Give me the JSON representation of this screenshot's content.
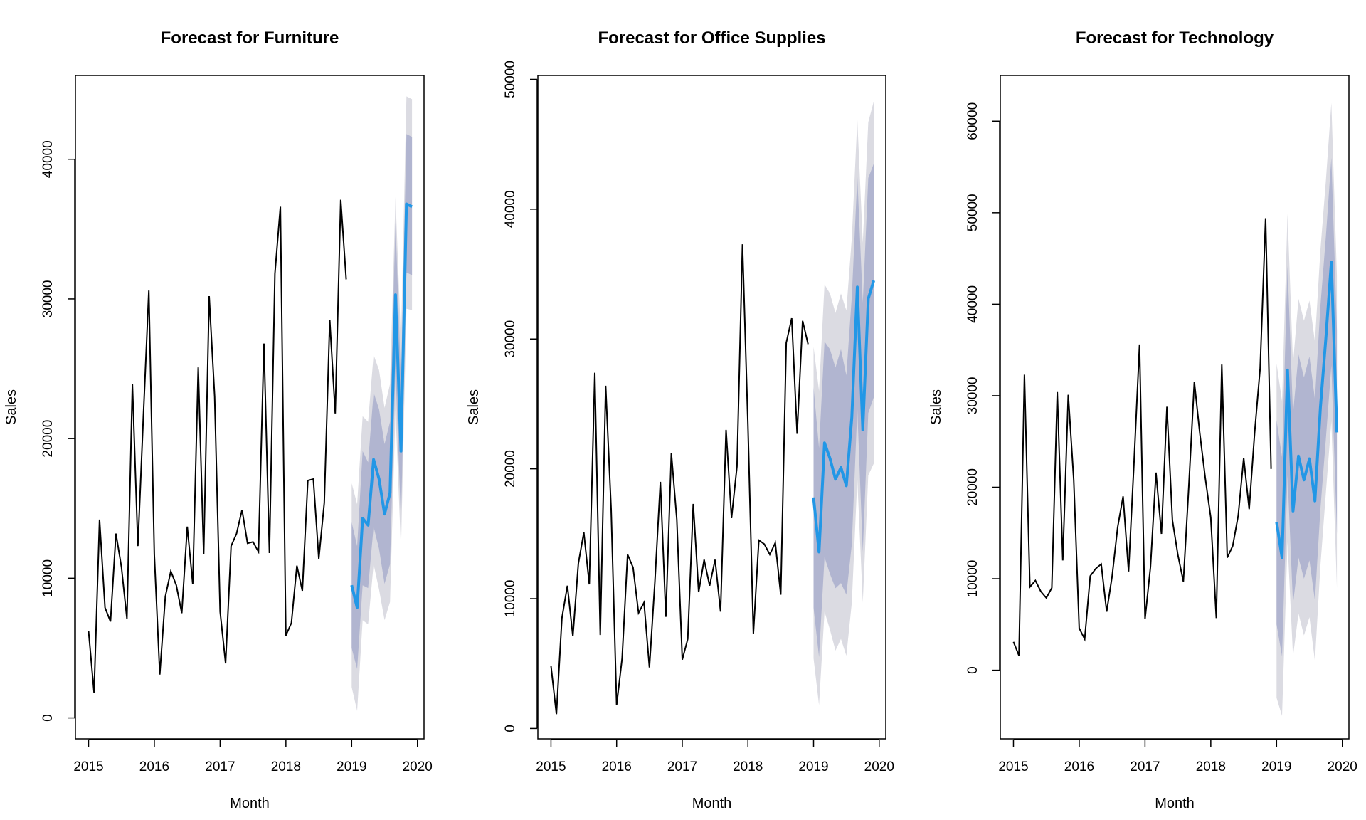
{
  "colors": {
    "history": "#000000",
    "forecast": "#2297e6",
    "pi80": "#b1b5d0",
    "pi95": "#dbdbe2"
  },
  "chart_data": [
    {
      "type": "line",
      "title": "Forecast for Furniture",
      "xlabel": "Month",
      "ylabel": "Sales",
      "xlim": [
        2014.8,
        2020.1
      ],
      "ylim": [
        -1500,
        46000
      ],
      "xticks": [
        2015,
        2016,
        2017,
        2018,
        2019,
        2020
      ],
      "yticks": [
        0,
        10000,
        20000,
        30000,
        40000
      ],
      "history": {
        "start": 2015,
        "values": [
          6200,
          1800,
          14200,
          7900,
          6900,
          13200,
          10800,
          7100,
          23900,
          12300,
          21600,
          30600,
          11700,
          3100,
          8700,
          10500,
          9500,
          7500,
          13700,
          9600,
          25100,
          11700,
          30200,
          23000,
          7600,
          3900,
          12300,
          13200,
          14900,
          12500,
          12600,
          11900,
          26800,
          11800,
          31800,
          36600,
          5900,
          6800,
          10900,
          9100,
          17000,
          17100,
          11400,
          15400,
          28500,
          21800,
          37100,
          31400
        ]
      },
      "forecast": {
        "start": 2019,
        "mean": [
          9500,
          7900,
          14300,
          13800,
          18500,
          17100,
          14600,
          16100,
          30300,
          19100,
          36800,
          36600
        ],
        "lo80": [
          5000,
          3500,
          9500,
          9300,
          13700,
          12100,
          9600,
          11000,
          25000,
          14000,
          31900,
          31700
        ],
        "hi80": [
          14000,
          12300,
          19100,
          18300,
          23300,
          22100,
          19600,
          21200,
          35500,
          24200,
          41800,
          41600
        ],
        "lo95": [
          2200,
          500,
          7000,
          6700,
          11000,
          9200,
          7000,
          8300,
          22000,
          12000,
          29300,
          29200
        ],
        "hi95": [
          16800,
          15300,
          21600,
          21200,
          26000,
          24900,
          22200,
          23900,
          37300,
          27000,
          44500,
          44300
        ]
      }
    },
    {
      "type": "line",
      "title": "Forecast for Office Supplies",
      "xlabel": "Month",
      "ylabel": "Sales",
      "xlim": [
        2014.8,
        2020.1
      ],
      "ylim": [
        -800,
        50300
      ],
      "xticks": [
        2015,
        2016,
        2017,
        2018,
        2019,
        2020
      ],
      "yticks": [
        0,
        10000,
        20000,
        30000,
        40000,
        50000
      ],
      "history": {
        "start": 2015,
        "values": [
          4800,
          1100,
          8500,
          11000,
          7100,
          12700,
          15100,
          11100,
          27400,
          7200,
          26400,
          16900,
          1800,
          5400,
          13400,
          12400,
          8900,
          9700,
          4700,
          11300,
          19000,
          8600,
          21200,
          16100,
          5300,
          6900,
          17300,
          10500,
          13000,
          11000,
          13000,
          9000,
          23000,
          16200,
          20200,
          37300,
          23500,
          7300,
          14500,
          14200,
          13400,
          14300,
          10300,
          29700,
          31600,
          22700,
          31400,
          29600
        ]
      },
      "forecast": {
        "start": 2019,
        "mean": [
          17800,
          13600,
          22000,
          20800,
          19200,
          20100,
          18700,
          24000,
          34000,
          23000,
          33100,
          34500
        ],
        "lo80": [
          9300,
          5500,
          13200,
          11900,
          10800,
          11200,
          10300,
          14200,
          24600,
          13600,
          24300,
          25500
        ],
        "hi80": [
          26300,
          21600,
          29800,
          29200,
          27800,
          29200,
          27200,
          33300,
          42500,
          32800,
          42400,
          43500
        ],
        "lo95": [
          5400,
          1800,
          9000,
          7600,
          6000,
          6900,
          5600,
          9700,
          19200,
          9700,
          19500,
          20400
        ],
        "hi95": [
          29400,
          26000,
          34200,
          33500,
          32000,
          33500,
          32200,
          37800,
          46900,
          37400,
          46700,
          48300
        ]
      }
    },
    {
      "type": "line",
      "title": "Forecast for Technology",
      "xlabel": "Month",
      "ylabel": "Sales",
      "xlim": [
        2014.8,
        2020.1
      ],
      "ylim": [
        -7500,
        65000
      ],
      "xticks": [
        2015,
        2016,
        2017,
        2018,
        2019,
        2020
      ],
      "yticks": [
        0,
        10000,
        20000,
        30000,
        40000,
        50000,
        60000
      ],
      "history": {
        "start": 2015,
        "values": [
          3100,
          1600,
          32300,
          9100,
          9800,
          8600,
          7900,
          9000,
          30400,
          12000,
          30100,
          20800,
          4600,
          3400,
          10300,
          11100,
          11600,
          6400,
          10300,
          15600,
          19000,
          10800,
          22800,
          35600,
          5600,
          11300,
          21600,
          14900,
          28800,
          16400,
          12600,
          9700,
          20200,
          31500,
          25900,
          21000,
          16700,
          5700,
          33400,
          12300,
          13600,
          16900,
          23200,
          17600,
          26000,
          33000,
          49400,
          22000
        ]
      },
      "forecast": {
        "start": 2019,
        "mean": [
          16200,
          12300,
          32800,
          17400,
          23400,
          20800,
          23100,
          18500,
          28700,
          36300,
          44600,
          26000
        ],
        "lo80": [
          5000,
          1500,
          21300,
          7200,
          12300,
          10000,
          12000,
          7600,
          17600,
          25300,
          33300,
          14900
        ],
        "hi80": [
          27300,
          23300,
          44200,
          28000,
          34500,
          32000,
          34300,
          29600,
          39800,
          47400,
          56000,
          37200
        ],
        "lo95": [
          -3000,
          -5000,
          14000,
          1500,
          6200,
          3800,
          5800,
          1000,
          11400,
          19400,
          27200,
          9000
        ],
        "hi95": [
          33500,
          29400,
          49900,
          33500,
          40600,
          38200,
          40400,
          35900,
          45900,
          53500,
          62000,
          43100
        ]
      }
    }
  ]
}
